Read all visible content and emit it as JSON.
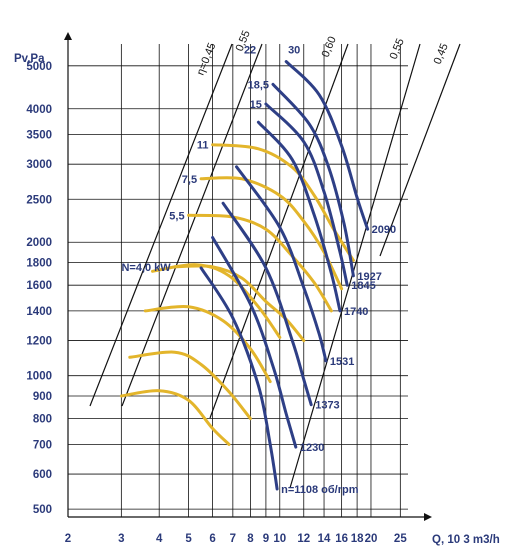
{
  "chart_data": {
    "type": "line",
    "title": "",
    "xlabel": "Q, 10 3 m3/h",
    "ylabel": "Pv,Pa",
    "x_scale": "log",
    "y_scale": "log",
    "xlim": [
      2,
      26.5
    ],
    "ylim": [
      480,
      5600
    ],
    "x_ticks": [
      2,
      3,
      4,
      5,
      6,
      7,
      8,
      9,
      10,
      12,
      14,
      16,
      18,
      20,
      25
    ],
    "y_ticks": [
      500,
      600,
      700,
      800,
      900,
      1000,
      1200,
      1400,
      1600,
      1800,
      2000,
      2500,
      3000,
      3500,
      4000,
      5000
    ],
    "grid": true,
    "colors": {
      "pressure_curve": "#2e3f86",
      "power_curve": "#e3b52b",
      "efficiency_line": "#111111",
      "grid": "#111111",
      "text": "#2b3a7a"
    },
    "speed_curves": [
      {
        "label": "n=1108 об/rpm",
        "points": [
          [
            5.5,
            1750
          ],
          [
            7,
            1350
          ],
          [
            8.5,
            950
          ],
          [
            9.3,
            700
          ],
          [
            9.8,
            555
          ]
        ]
      },
      {
        "label": "1230",
        "points": [
          [
            6,
            2050
          ],
          [
            8,
            1450
          ],
          [
            9.5,
            1050
          ],
          [
            10.5,
            820
          ],
          [
            11.3,
            690
          ]
        ]
      },
      {
        "label": "1373",
        "points": [
          [
            6.5,
            2450
          ],
          [
            9,
            1750
          ],
          [
            11,
            1200
          ],
          [
            12,
            980
          ],
          [
            12.7,
            860
          ]
        ]
      },
      {
        "label": "1531",
        "points": [
          [
            7.2,
            2960
          ],
          [
            10,
            2160
          ],
          [
            12,
            1580
          ],
          [
            13.5,
            1240
          ],
          [
            14.2,
            1080
          ]
        ]
      },
      {
        "label": "1740",
        "points": [
          [
            8.5,
            3730
          ],
          [
            11,
            3070
          ],
          [
            13,
            2300
          ],
          [
            14.8,
            1700
          ],
          [
            15.8,
            1400
          ]
        ]
      },
      {
        "label": "1845",
        "points": [
          [
            9,
            4100
          ],
          [
            12,
            3370
          ],
          [
            14,
            2600
          ],
          [
            15.8,
            1900
          ],
          [
            16.7,
            1600
          ]
        ]
      },
      {
        "label": "1927",
        "points": [
          [
            9.5,
            4540
          ],
          [
            12.5,
            3700
          ],
          [
            14.5,
            2950
          ],
          [
            16.3,
            2200
          ],
          [
            17.5,
            1680
          ]
        ]
      },
      {
        "label": "2090",
        "points": [
          [
            10.5,
            5110
          ],
          [
            13.5,
            4300
          ],
          [
            16,
            3300
          ],
          [
            18,
            2520
          ],
          [
            19.5,
            2140
          ]
        ]
      }
    ],
    "power_curves": [
      {
        "label": "N=4,0 kW",
        "points": [
          [
            4.5,
            1760
          ],
          [
            6,
            1760
          ],
          [
            7.5,
            1660
          ],
          [
            9,
            1470
          ],
          [
            10.5,
            1340
          ],
          [
            12,
            1200
          ]
        ]
      },
      {
        "label": "5,5",
        "points": [
          [
            5,
            2300
          ],
          [
            7,
            2280
          ],
          [
            9,
            2140
          ],
          [
            11,
            1860
          ],
          [
            13,
            1620
          ],
          [
            14.8,
            1400
          ]
        ]
      },
      {
        "label": "7,5",
        "points": [
          [
            5.5,
            2780
          ],
          [
            7.5,
            2780
          ],
          [
            10,
            2550
          ],
          [
            12,
            2230
          ],
          [
            14,
            1900
          ],
          [
            16,
            1570
          ]
        ]
      },
      {
        "label": "11",
        "points": [
          [
            6,
            3320
          ],
          [
            8.5,
            3250
          ],
          [
            11,
            2950
          ],
          [
            13,
            2550
          ],
          [
            15,
            2150
          ],
          [
            17.5,
            1820
          ]
        ]
      },
      {
        "label": "",
        "points": [
          [
            3,
            900
          ],
          [
            4,
            925
          ],
          [
            5,
            880
          ],
          [
            6,
            760
          ],
          [
            6.8,
            700
          ]
        ]
      },
      {
        "label": "",
        "points": [
          [
            3.2,
            1100
          ],
          [
            4.5,
            1130
          ],
          [
            5.5,
            1060
          ],
          [
            6.8,
            920
          ],
          [
            8,
            800
          ]
        ]
      },
      {
        "label": "",
        "points": [
          [
            3.6,
            1400
          ],
          [
            5,
            1430
          ],
          [
            6.5,
            1330
          ],
          [
            8,
            1150
          ],
          [
            9.3,
            970
          ]
        ]
      },
      {
        "label": "",
        "points": [
          [
            3.8,
            1720
          ],
          [
            5.3,
            1780
          ],
          [
            6.8,
            1680
          ],
          [
            8.5,
            1430
          ],
          [
            10,
            1220
          ]
        ]
      }
    ],
    "power_point_labels": [
      "15",
      "18,5",
      "22",
      "30"
    ],
    "efficiency_lines": [
      "η=0,45",
      "0,55",
      "0,60",
      "0,55",
      "0,45"
    ]
  }
}
